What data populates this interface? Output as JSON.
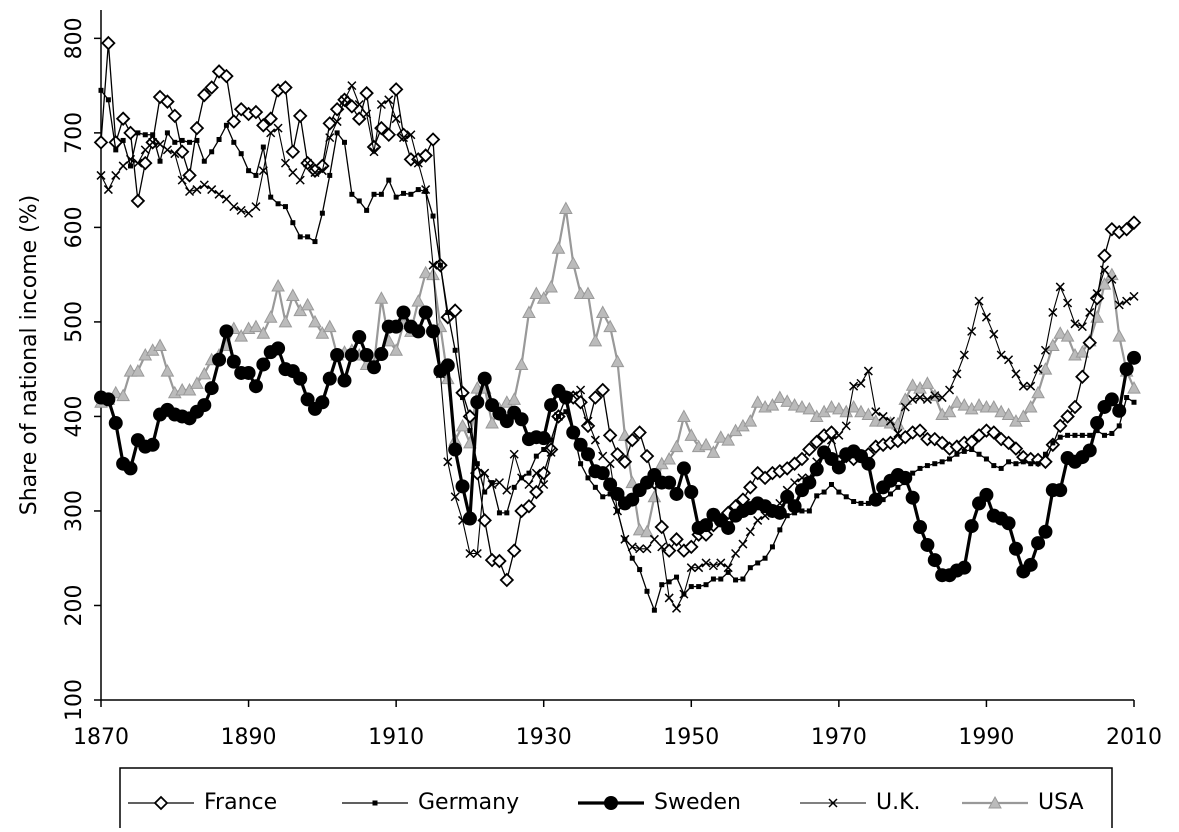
{
  "chart_data": {
    "type": "line",
    "y_label": "Share of national income (%)",
    "xlim": [
      1870,
      2010
    ],
    "ylim": [
      100,
      830
    ],
    "xticks": [
      1870,
      1890,
      1910,
      1930,
      1950,
      1970,
      1990,
      2010
    ],
    "yticks": [
      100,
      200,
      300,
      400,
      500,
      600,
      700,
      800
    ],
    "x": [
      1870,
      1871,
      1872,
      1873,
      1874,
      1875,
      1876,
      1877,
      1878,
      1879,
      1880,
      1881,
      1882,
      1883,
      1884,
      1885,
      1886,
      1887,
      1888,
      1889,
      1890,
      1891,
      1892,
      1893,
      1894,
      1895,
      1896,
      1897,
      1898,
      1899,
      1900,
      1901,
      1902,
      1903,
      1904,
      1905,
      1906,
      1907,
      1908,
      1909,
      1910,
      1911,
      1912,
      1913,
      1914,
      1915,
      1916,
      1917,
      1918,
      1919,
      1920,
      1921,
      1922,
      1923,
      1924,
      1925,
      1926,
      1927,
      1928,
      1929,
      1930,
      1931,
      1932,
      1933,
      1934,
      1935,
      1936,
      1937,
      1938,
      1939,
      1940,
      1941,
      1942,
      1943,
      1944,
      1945,
      1946,
      1947,
      1948,
      1949,
      1950,
      1951,
      1952,
      1953,
      1954,
      1955,
      1956,
      1957,
      1958,
      1959,
      1960,
      1961,
      1962,
      1963,
      1964,
      1965,
      1966,
      1967,
      1968,
      1969,
      1970,
      1971,
      1972,
      1973,
      1974,
      1975,
      1976,
      1977,
      1978,
      1979,
      1980,
      1981,
      1982,
      1983,
      1984,
      1985,
      1986,
      1987,
      1988,
      1989,
      1990,
      1991,
      1992,
      1993,
      1994,
      1995,
      1996,
      1997,
      1998,
      1999,
      2000,
      2001,
      2002,
      2003,
      2004,
      2005,
      2006,
      2007,
      2008,
      2009,
      2010
    ],
    "series": [
      {
        "name": "USA",
        "color": "#999999",
        "marker": "triangle",
        "values": [
          415,
          418,
          425,
          422,
          448,
          448,
          465,
          470,
          475,
          448,
          425,
          428,
          428,
          435,
          445,
          460,
          465,
          475,
          493,
          485,
          493,
          495,
          488,
          505,
          538,
          500,
          528,
          512,
          518,
          500,
          488,
          495,
          465,
          468,
          470,
          465,
          455,
          455,
          525,
          480,
          470,
          498,
          490,
          522,
          552,
          550,
          495,
          440,
          375,
          390,
          372,
          430,
          430,
          393,
          408,
          415,
          418,
          455,
          510,
          530,
          525,
          537,
          578,
          620,
          562,
          530,
          530,
          480,
          510,
          495,
          458,
          380,
          330,
          280,
          278,
          315,
          350,
          355,
          368,
          400,
          380,
          368,
          370,
          362,
          378,
          375,
          385,
          390,
          395,
          415,
          410,
          412,
          420,
          416,
          412,
          410,
          408,
          400,
          405,
          410,
          408,
          405,
          410,
          405,
          402,
          395,
          395,
          393,
          392,
          418,
          433,
          430,
          435,
          422,
          402,
          405,
          415,
          412,
          408,
          412,
          410,
          410,
          405,
          402,
          395,
          400,
          410,
          425,
          450,
          475,
          488,
          485,
          465,
          468,
          480,
          505,
          540,
          550,
          485,
          448,
          430
        ]
      },
      {
        "name": "France",
        "color": "#000000",
        "marker": "diamond",
        "values": [
          690,
          795,
          690,
          715,
          700,
          628,
          668,
          690,
          738,
          733,
          718,
          680,
          655,
          705,
          740,
          748,
          765,
          760,
          712,
          725,
          720,
          722,
          708,
          715,
          745,
          748,
          680,
          718,
          668,
          660,
          665,
          710,
          725,
          735,
          728,
          715,
          742,
          685,
          705,
          698,
          746,
          698,
          672,
          672,
          676,
          693,
          560,
          505,
          512,
          425,
          400,
          340,
          290,
          248,
          247,
          227,
          258,
          300,
          305,
          320,
          340,
          365,
          400,
          420,
          420,
          415,
          390,
          420,
          428,
          380,
          360,
          352,
          375,
          383,
          358,
          330,
          283,
          258,
          270,
          258,
          262,
          275,
          275,
          285,
          290,
          298,
          305,
          312,
          325,
          340,
          335,
          340,
          342,
          345,
          350,
          355,
          365,
          373,
          380,
          383,
          352,
          358,
          355,
          358,
          360,
          368,
          370,
          372,
          374,
          378,
          383,
          385,
          376,
          376,
          372,
          366,
          368,
          372,
          373,
          380,
          385,
          383,
          376,
          372,
          366,
          357,
          355,
          354,
          352,
          370,
          390,
          400,
          410,
          442,
          478,
          525,
          570,
          598,
          595,
          598,
          605
        ]
      },
      {
        "name": "Germany",
        "color": "#000000",
        "marker": "square",
        "values": [
          745,
          735,
          682,
          692,
          665,
          700,
          698,
          698,
          670,
          700,
          690,
          692,
          690,
          692,
          670,
          680,
          693,
          708,
          690,
          678,
          660,
          655,
          685,
          632,
          625,
          622,
          605,
          590,
          590,
          585,
          615,
          655,
          700,
          690,
          635,
          628,
          618,
          635,
          635,
          650,
          632,
          636,
          635,
          640,
          638,
          612,
          560,
          510,
          470,
          420,
          385,
          350,
          320,
          330,
          298,
          298,
          325,
          335,
          340,
          358,
          365,
          375,
          400,
          405,
          385,
          350,
          335,
          325,
          315,
          318,
          300,
          270,
          250,
          238,
          215,
          195,
          222,
          225,
          230,
          212,
          220,
          220,
          222,
          228,
          228,
          235,
          227,
          228,
          240,
          245,
          250,
          262,
          280,
          295,
          298,
          300,
          300,
          316,
          320,
          328,
          320,
          315,
          310,
          308,
          308,
          312,
          312,
          318,
          325,
          330,
          340,
          345,
          348,
          350,
          352,
          355,
          360,
          363,
          365,
          360,
          355,
          348,
          345,
          352,
          350,
          352,
          350,
          350,
          360,
          372,
          378,
          380,
          380,
          380,
          380,
          385,
          380,
          382,
          390,
          420,
          415
        ]
      },
      {
        "name": "Sweden",
        "color": "#000000",
        "marker": "circle",
        "values": [
          420,
          418,
          393,
          350,
          345,
          375,
          368,
          370,
          402,
          407,
          402,
          400,
          398,
          405,
          412,
          430,
          460,
          490,
          458,
          446,
          446,
          432,
          455,
          468,
          472,
          450,
          448,
          440,
          418,
          408,
          415,
          440,
          465,
          438,
          465,
          484,
          465,
          452,
          466,
          495,
          495,
          510,
          495,
          490,
          510,
          490,
          448,
          454,
          365,
          326,
          292,
          415,
          440,
          412,
          403,
          395,
          404,
          397,
          376,
          378,
          377,
          412,
          427,
          420,
          383,
          370,
          360,
          342,
          340,
          328,
          318,
          308,
          312,
          322,
          330,
          338,
          330,
          330,
          318,
          345,
          320,
          282,
          285,
          296,
          290,
          282,
          295,
          300,
          303,
          308,
          305,
          300,
          298,
          315,
          305,
          322,
          330,
          344,
          362,
          355,
          346,
          360,
          363,
          358,
          350,
          312,
          325,
          332,
          338,
          335,
          314,
          283,
          264,
          248,
          232,
          232,
          237,
          240,
          284,
          308,
          317,
          295,
          292,
          287,
          260,
          236,
          243,
          266,
          278,
          322,
          322,
          356,
          352,
          357,
          364,
          393,
          410,
          418,
          406,
          450,
          462
        ]
      },
      {
        "name": "U.K.",
        "color": "#000000",
        "marker": "cross",
        "values": [
          655,
          640,
          655,
          665,
          672,
          668,
          682,
          690,
          688,
          682,
          678,
          650,
          638,
          640,
          645,
          640,
          635,
          630,
          622,
          618,
          615,
          622,
          660,
          700,
          705,
          668,
          658,
          650,
          668,
          658,
          660,
          695,
          712,
          735,
          750,
          730,
          720,
          680,
          730,
          735,
          715,
          695,
          698,
          668,
          640,
          560,
          445,
          352,
          315,
          290,
          255,
          255,
          340,
          328,
          330,
          322,
          360,
          335,
          328,
          340,
          328,
          362,
          400,
          420,
          422,
          428,
          395,
          375,
          358,
          350,
          300,
          270,
          262,
          260,
          260,
          270,
          262,
          208,
          197,
          212,
          240,
          240,
          245,
          242,
          245,
          240,
          255,
          265,
          278,
          290,
          295,
          298,
          308,
          322,
          330,
          335,
          335,
          352,
          358,
          375,
          380,
          390,
          432,
          435,
          448,
          405,
          400,
          395,
          382,
          410,
          418,
          420,
          418,
          422,
          420,
          428,
          445,
          465,
          490,
          522,
          505,
          487,
          465,
          460,
          445,
          432,
          432,
          450,
          470,
          510,
          537,
          520,
          498,
          495,
          510,
          530,
          555,
          545,
          518,
          522,
          527
        ]
      }
    ],
    "legend_order": [
      1,
      2,
      3,
      4,
      0
    ]
  }
}
